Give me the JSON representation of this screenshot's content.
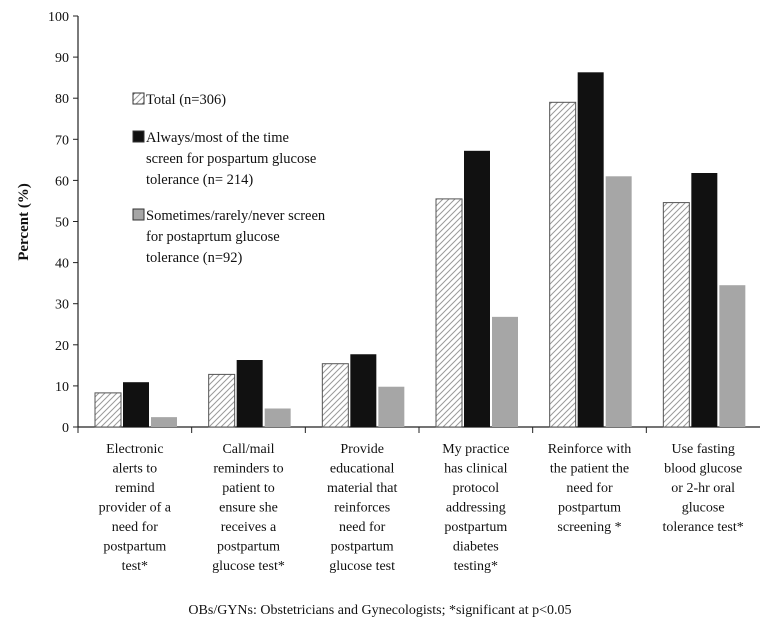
{
  "chart_data": {
    "type": "bar",
    "ylabel": "Percent (%)",
    "ylim": [
      0,
      100
    ],
    "yticks": [
      "0",
      "10",
      "20",
      "30",
      "40",
      "50",
      "60",
      "70",
      "80",
      "90",
      "100"
    ],
    "grid": false,
    "legend_position": "top-left",
    "categories": [
      [
        "Electronic",
        "alerts to",
        "remind",
        "provider of a",
        "need for",
        "postpartum",
        "test*"
      ],
      [
        "Call/mail",
        "reminders to",
        "patient to",
        "ensure she",
        "receives a",
        "postpartum",
        "glucose test*"
      ],
      [
        "Provide",
        "educational",
        "material that",
        "reinforces",
        "need for",
        "postpartum",
        "glucose test"
      ],
      [
        "My practice",
        "has clinical",
        "protocol",
        "addressing",
        "postpartum",
        "diabetes",
        "testing*"
      ],
      [
        "Reinforce with",
        "the patient the",
        "need for",
        "postpartum",
        "screening *"
      ],
      [
        "Use fasting",
        "blood glucose",
        "or 2-hr oral",
        "glucose",
        "tolerance test*"
      ]
    ],
    "series": [
      {
        "name_lines": [
          "Total (n=306)"
        ],
        "pattern": "hatched",
        "values": [
          8.3,
          12.8,
          15.4,
          55.5,
          79.0,
          54.6
        ]
      },
      {
        "name_lines": [
          "Always/most of the time",
          "screen for pospartum glucose",
          "tolerance (n= 214)"
        ],
        "color": "#111111",
        "values": [
          10.9,
          16.3,
          17.7,
          67.2,
          86.3,
          61.8
        ]
      },
      {
        "name_lines": [
          "Sometimes/rarely/never screen",
          "for postaprtum glucose",
          "tolerance (n=92)"
        ],
        "color": "#a6a6a6",
        "values": [
          2.4,
          4.5,
          9.8,
          26.8,
          61.0,
          34.5
        ]
      }
    ],
    "footnote": "OBs/GYNs: Obstetricians and Gynecologists; *significant at p<0.05"
  }
}
